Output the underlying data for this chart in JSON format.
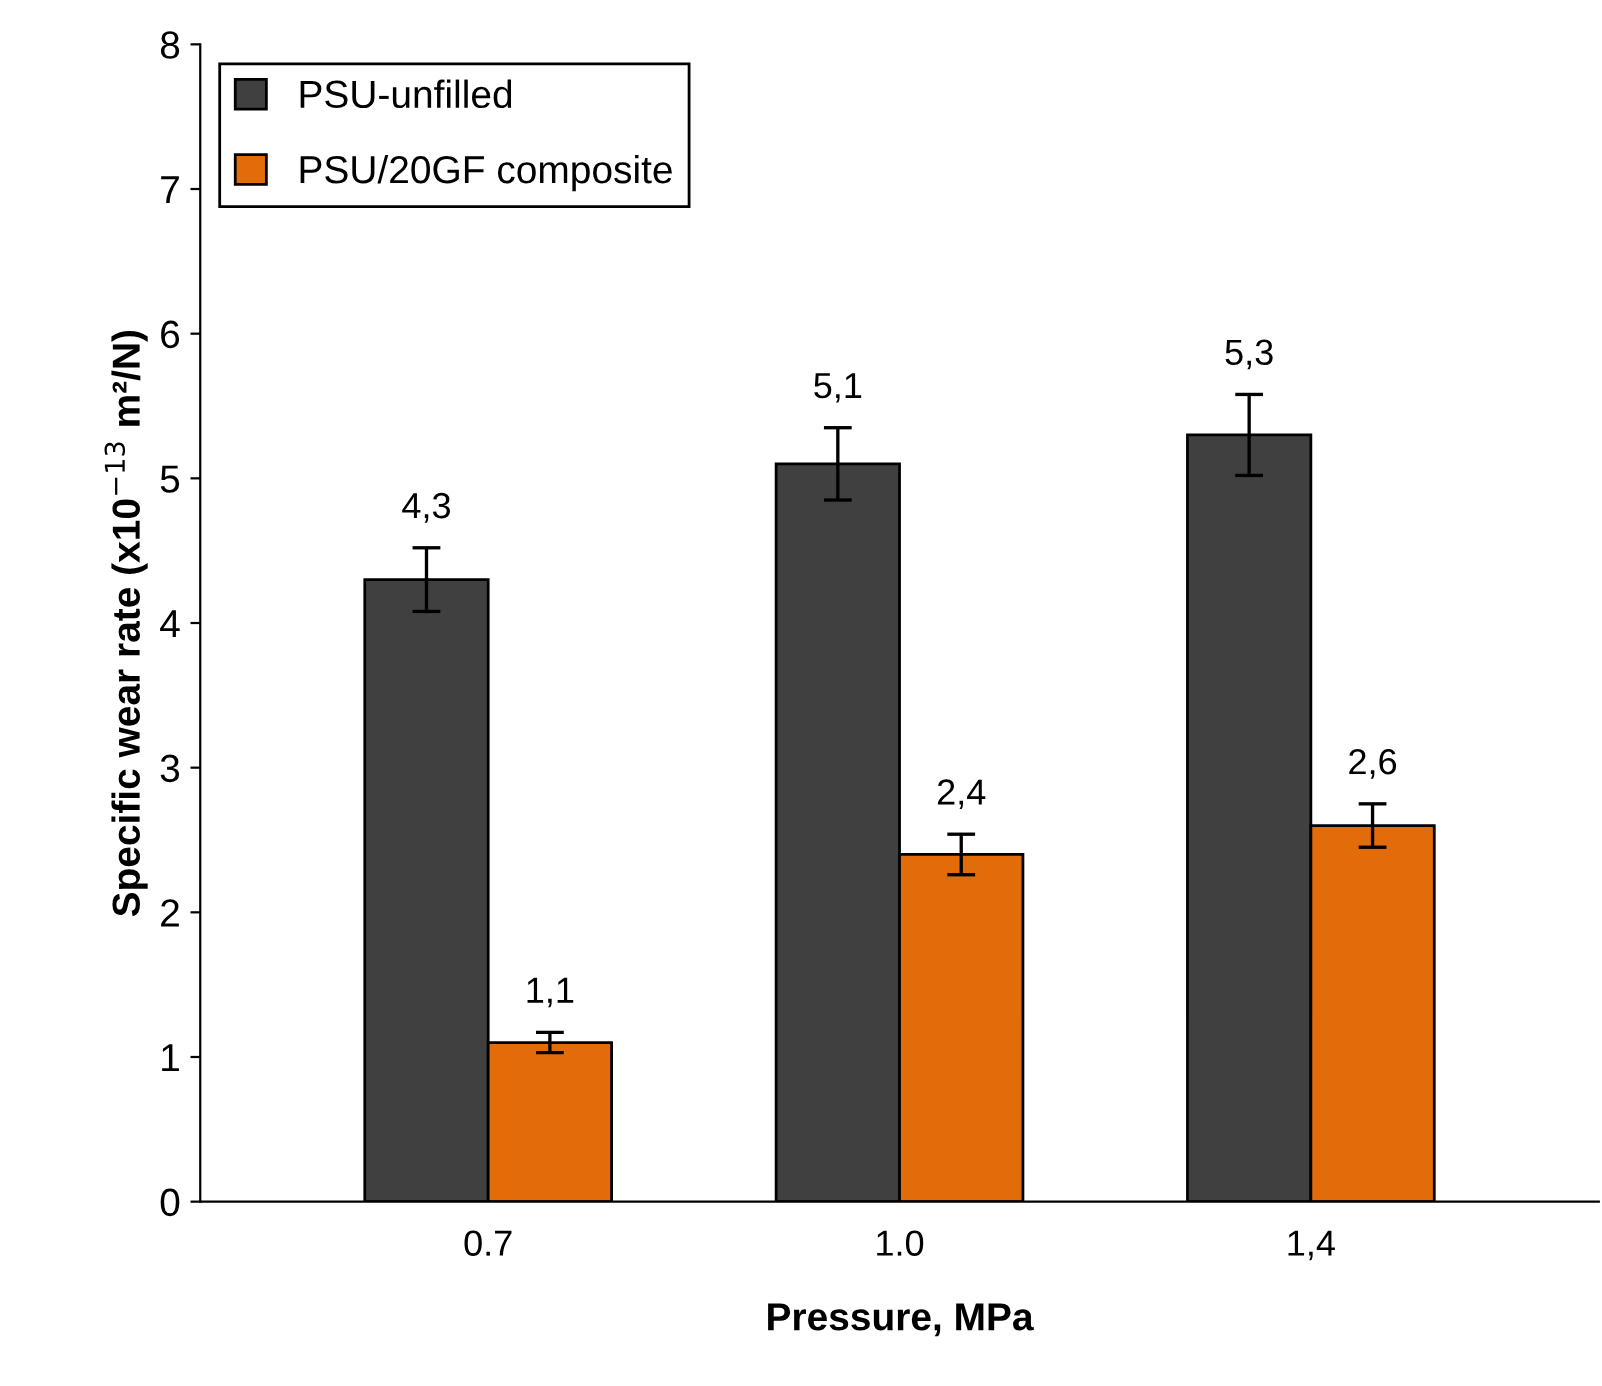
{
  "chart_data": {
    "type": "bar",
    "xlabel": "Pressure, MPa",
    "ylabel": "Specific wear rate (x10$^{−13}$ m²/N)",
    "categories": [
      "0.7",
      "1.0",
      "1,4"
    ],
    "series": [
      {
        "name": "PSU-unfilled",
        "color": "#404040",
        "values": [
          4.3,
          5.1,
          5.3
        ],
        "errors": [
          0.22,
          0.25,
          0.28
        ],
        "value_labels": [
          "4,3",
          "5,1",
          "5,3"
        ]
      },
      {
        "name": "PSU/20GF composite",
        "color": "#e36c0a",
        "values": [
          1.1,
          2.4,
          2.6
        ],
        "errors": [
          0.07,
          0.14,
          0.15
        ],
        "value_labels": [
          "1,1",
          "2,4",
          "2,6"
        ]
      }
    ],
    "ylim": [
      0,
      8
    ],
    "yticks": [
      0,
      1,
      2,
      3,
      4,
      5,
      6,
      7,
      8
    ],
    "grid": false,
    "legend": "top left"
  }
}
